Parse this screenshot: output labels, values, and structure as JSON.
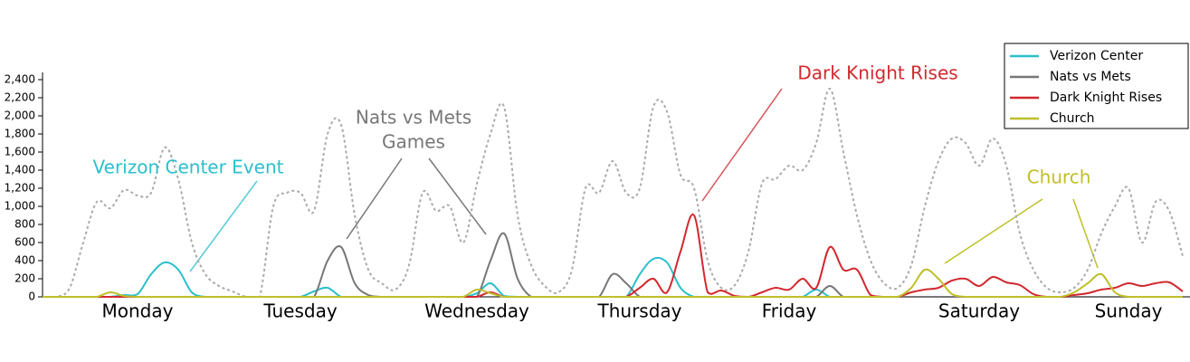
{
  "chart_data": {
    "type": "line",
    "categories": [
      null,
      null,
      null,
      null,
      null,
      null,
      null,
      "Monday",
      null,
      null,
      null,
      null,
      null,
      null,
      null,
      null,
      null,
      null,
      null,
      "Tuesday",
      null,
      null,
      null,
      null,
      null,
      null,
      null,
      null,
      null,
      null,
      null,
      null,
      "Wednesday",
      null,
      null,
      null,
      null,
      null,
      null,
      null,
      null,
      null,
      null,
      null,
      "Thursday",
      null,
      null,
      null,
      null,
      null,
      null,
      null,
      null,
      null,
      null,
      "Friday",
      null,
      null,
      null,
      null,
      null,
      null,
      null,
      null,
      null,
      null,
      null,
      null,
      null,
      "Saturday",
      null,
      null,
      null,
      null,
      null,
      null,
      null,
      null,
      null,
      null,
      "Sunday",
      null,
      null,
      null,
      null
    ],
    "series": [
      {
        "color": "#aaaaaa",
        "dash": "dotted",
        "values": [
          0,
          0,
          100,
          600,
          1050,
          980,
          1180,
          1120,
          1150,
          1650,
          1300,
          600,
          250,
          120,
          60,
          0,
          0,
          1000,
          1150,
          1150,
          950,
          1800,
          1900,
          900,
          300,
          150,
          80,
          350,
          1150,
          950,
          1000,
          600,
          1250,
          1800,
          2100,
          900,
          350,
          120,
          50,
          300,
          1200,
          1150,
          1500,
          1150,
          1200,
          2100,
          2050,
          1350,
          1200,
          400,
          100,
          130,
          500,
          1250,
          1300,
          1450,
          1400,
          1700,
          2300,
          1600,
          900,
          400,
          150,
          100,
          350,
          1000,
          1500,
          1750,
          1700,
          1450,
          1750,
          1450,
          700,
          300,
          100,
          50,
          100,
          300,
          700,
          1000,
          1200,
          600,
          1050,
          950,
          450
        ]
      },
      {
        "name": "Verizon Center",
        "color": "#2bbfcc",
        "values": [
          0,
          0,
          0,
          0,
          0,
          0,
          20,
          30,
          250,
          380,
          300,
          50,
          0,
          0,
          0,
          0,
          0,
          0,
          0,
          0,
          60,
          100,
          0,
          0,
          0,
          0,
          0,
          0,
          0,
          0,
          0,
          0,
          40,
          150,
          10,
          0,
          0,
          0,
          0,
          0,
          0,
          0,
          0,
          0,
          250,
          420,
          380,
          100,
          0,
          0,
          0,
          0,
          0,
          0,
          0,
          0,
          0,
          80,
          0,
          0,
          0,
          0,
          0,
          0,
          0,
          0,
          0,
          0,
          0,
          0,
          0,
          0,
          0,
          0,
          0,
          0,
          0,
          0,
          0,
          0,
          0,
          0,
          0,
          0,
          0
        ]
      },
      {
        "name": "Nats vs Mets",
        "color": "#777777",
        "values": [
          0,
          0,
          0,
          0,
          0,
          0,
          0,
          0,
          0,
          0,
          0,
          0,
          0,
          0,
          0,
          0,
          0,
          0,
          0,
          0,
          0,
          400,
          550,
          150,
          20,
          0,
          0,
          0,
          0,
          0,
          0,
          0,
          0,
          400,
          700,
          200,
          0,
          0,
          0,
          0,
          0,
          0,
          250,
          150,
          0,
          0,
          0,
          0,
          0,
          0,
          0,
          0,
          0,
          0,
          0,
          0,
          0,
          0,
          120,
          0,
          0,
          0,
          0,
          0,
          0,
          0,
          0,
          0,
          0,
          0,
          0,
          0,
          0,
          0,
          0,
          0,
          0,
          0,
          0,
          0,
          0,
          0,
          0,
          0,
          0
        ]
      },
      {
        "name": "Dark Knight Rises",
        "color": "#d2282e",
        "values": [
          0,
          0,
          0,
          0,
          0,
          0,
          0,
          0,
          0,
          0,
          0,
          0,
          0,
          0,
          0,
          0,
          0,
          0,
          0,
          0,
          0,
          0,
          0,
          0,
          0,
          0,
          0,
          0,
          0,
          0,
          0,
          0,
          0,
          50,
          0,
          0,
          0,
          0,
          0,
          0,
          0,
          0,
          0,
          0,
          100,
          200,
          50,
          500,
          900,
          50,
          70,
          10,
          0,
          50,
          100,
          80,
          200,
          100,
          550,
          300,
          300,
          20,
          0,
          0,
          50,
          80,
          100,
          180,
          200,
          120,
          220,
          160,
          130,
          30,
          0,
          0,
          20,
          40,
          80,
          100,
          150,
          120,
          150,
          160,
          60
        ]
      },
      {
        "name": "Church",
        "color": "#bfbf2a",
        "values": [
          0,
          0,
          0,
          0,
          0,
          50,
          10,
          0,
          0,
          0,
          0,
          0,
          0,
          0,
          0,
          0,
          0,
          0,
          0,
          0,
          0,
          0,
          0,
          0,
          0,
          0,
          0,
          0,
          0,
          0,
          0,
          0,
          80,
          40,
          0,
          0,
          0,
          0,
          0,
          0,
          0,
          0,
          0,
          0,
          0,
          0,
          0,
          0,
          0,
          0,
          0,
          0,
          0,
          0,
          0,
          0,
          0,
          0,
          0,
          0,
          0,
          0,
          0,
          0,
          100,
          300,
          200,
          30,
          0,
          0,
          0,
          0,
          0,
          0,
          0,
          0,
          50,
          150,
          250,
          50,
          0,
          0,
          0,
          0,
          0
        ]
      }
    ],
    "ylim": [
      0,
      2400
    ],
    "yticks": [
      0,
      200,
      400,
      600,
      800,
      {
        "value": 1000,
        "label": "1,000"
      },
      {
        "value": 1200,
        "label": "1,200"
      },
      {
        "value": 1400,
        "label": "1,400"
      },
      {
        "value": 1600,
        "label": "1,600"
      },
      {
        "value": 1800,
        "label": "1,800"
      },
      {
        "value": 2000,
        "label": "2,000"
      },
      {
        "value": 2200,
        "label": "2,200"
      },
      {
        "value": 2400,
        "label": "2,400"
      }
    ],
    "legend": "top-right",
    "annotations": [
      {
        "lines": [
          "Verizon Center Event"
        ],
        "color": "#2bbfcc"
      },
      {
        "lines": [
          "Nats vs Mets",
          "Games"
        ],
        "color": "#777777"
      },
      {
        "lines": [
          "Dark Knight Rises"
        ],
        "color": "#d2282e"
      },
      {
        "lines": [
          "Church"
        ],
        "color": "#bfbf2a"
      }
    ]
  }
}
